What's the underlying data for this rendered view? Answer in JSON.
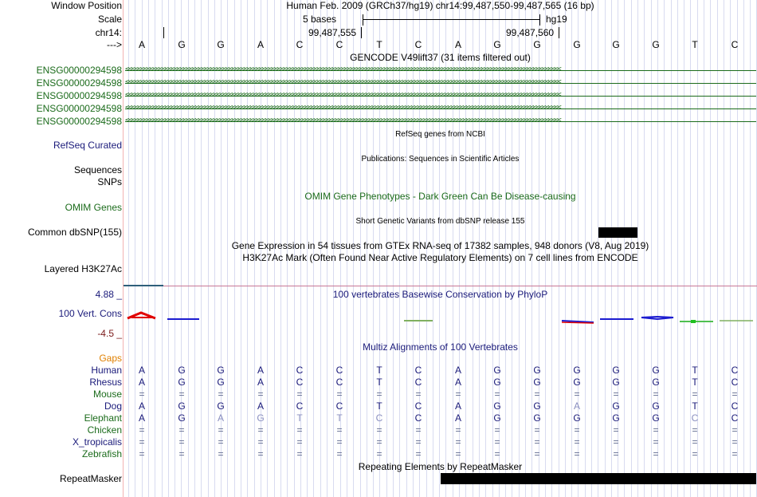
{
  "header": {
    "window_position_label": "Window Position",
    "window_position_value": "Human Feb. 2009 (GRCh37/hg19)   chr14:99,487,550-99,487,565 (16 bp)",
    "scale_label": "Scale",
    "scale_value": "5 bases",
    "scale_assembly": "hg19",
    "chrom_label": "chr14:",
    "ruler_tick_1": "99,487,555",
    "ruler_tick_2": "99,487,560",
    "strand_label": "--->"
  },
  "ref_bases": [
    "A",
    "G",
    "G",
    "A",
    "C",
    "C",
    "T",
    "C",
    "A",
    "G",
    "G",
    "G",
    "G",
    "G",
    "T",
    "C"
  ],
  "gencode": {
    "title": "GENCODE V49lift37 (31 items filtered out)",
    "genes": [
      "ENSG00000294598",
      "ENSG00000294598",
      "ENSG00000294598",
      "ENSG00000294598",
      "ENSG00000294598"
    ],
    "arrow_glyphs": "<<<<<<<<<<<<<<<<<<<<<<<<<<<<<<<<<<<<<<<<<<<<<<<<<<<<<<<<<<<<<<<<<<<<<<<<<<<<<<<<<<<<<<<<<<<<<<<<<<<<<<<<<<<<<<<<<<<<<<<<<<<<<<<<<<<<<<<<<<<<<<<"
  },
  "refseq": {
    "title": "RefSeq genes from NCBI",
    "label": "RefSeq Curated"
  },
  "publications": {
    "title": "Publications: Sequences in Scientific Articles",
    "label_sequences": "Sequences",
    "label_snps": "SNPs"
  },
  "omim": {
    "title": "OMIM Gene Phenotypes - Dark Green Can Be Disease-causing",
    "label": "OMIM Genes"
  },
  "dbsnp": {
    "title": "Short Genetic Variants from dbSNP release 155",
    "label": "Common dbSNP(155)"
  },
  "gtex": {
    "title": "Gene Expression in 54 tissues from GTEx RNA-seq of 17382 samples, 948 donors (V8, Aug 2019)"
  },
  "h3k27ac": {
    "title": "H3K27Ac Mark (Often Found Near Active Regulatory Elements) on 7 cell lines from ENCODE",
    "label": "Layered H3K27Ac"
  },
  "phylop": {
    "title": "100 vertebrates Basewise Conservation by PhyloP",
    "label": "100 Vert. Cons",
    "max_label": "4.88 _",
    "min_label": "-4.5 _"
  },
  "multiz": {
    "title": "Multiz Alignments of 100 Vertebrates",
    "gaps_label": "Gaps",
    "species": [
      {
        "name": "Human",
        "color": "#1a1a7a",
        "bases": [
          "A",
          "G",
          "G",
          "A",
          "C",
          "C",
          "T",
          "C",
          "A",
          "G",
          "G",
          "G",
          "G",
          "G",
          "T",
          "C"
        ],
        "faded": []
      },
      {
        "name": "Rhesus",
        "color": "#1a1a7a",
        "bases": [
          "A",
          "G",
          "G",
          "A",
          "C",
          "C",
          "T",
          "C",
          "A",
          "G",
          "G",
          "G",
          "G",
          "G",
          "T",
          "C"
        ],
        "faded": []
      },
      {
        "name": "Mouse",
        "color": "#1b6b1b",
        "bases": [
          "=",
          "=",
          "=",
          "=",
          "=",
          "=",
          "=",
          "=",
          "=",
          "=",
          "=",
          "=",
          "=",
          "=",
          "=",
          "="
        ],
        "faded": []
      },
      {
        "name": "Dog",
        "color": "#1a1a7a",
        "bases": [
          "A",
          "G",
          "G",
          "A",
          "C",
          "C",
          "T",
          "C",
          "A",
          "G",
          "G",
          "A",
          "G",
          "G",
          "T",
          "C"
        ],
        "faded": [
          11
        ]
      },
      {
        "name": "Elephant",
        "color": "#1b6b1b",
        "bases": [
          "A",
          "G",
          "A",
          "G",
          "T",
          "T",
          "C",
          "C",
          "A",
          "G",
          "G",
          "G",
          "G",
          "G",
          "C",
          "C"
        ],
        "faded": [
          2,
          3,
          4,
          5,
          6,
          14
        ]
      },
      {
        "name": "Chicken",
        "color": "#1b6b1b",
        "bases": [
          "=",
          "=",
          "=",
          "=",
          "=",
          "=",
          "=",
          "=",
          "=",
          "=",
          "=",
          "=",
          "=",
          "=",
          "=",
          "="
        ],
        "faded": []
      },
      {
        "name": "X_tropicalis",
        "color": "#1a1a7a",
        "bases": [
          "=",
          "=",
          "=",
          "=",
          "=",
          "=",
          "=",
          "=",
          "=",
          "=",
          "=",
          "=",
          "=",
          "=",
          "=",
          "="
        ],
        "faded": []
      },
      {
        "name": "Zebrafish",
        "color": "#1b6b1b",
        "bases": [
          "=",
          "=",
          "=",
          "=",
          "=",
          "=",
          "=",
          "=",
          "=",
          "=",
          "=",
          "=",
          "=",
          "=",
          "=",
          "="
        ],
        "faded": []
      }
    ]
  },
  "repeatmasker": {
    "title": "Repeating Elements by RepeatMasker",
    "label": "RepeatMasker"
  },
  "colors": {
    "gencode": "#1b6b1b",
    "navy": "#1a1a7a",
    "omim": "#1b6b1b",
    "phylop_axis_max": "#1a1a7a",
    "phylop_axis_min": "#7a1a1a",
    "gaps": "#e08000",
    "grid": "#d8dbf0"
  }
}
